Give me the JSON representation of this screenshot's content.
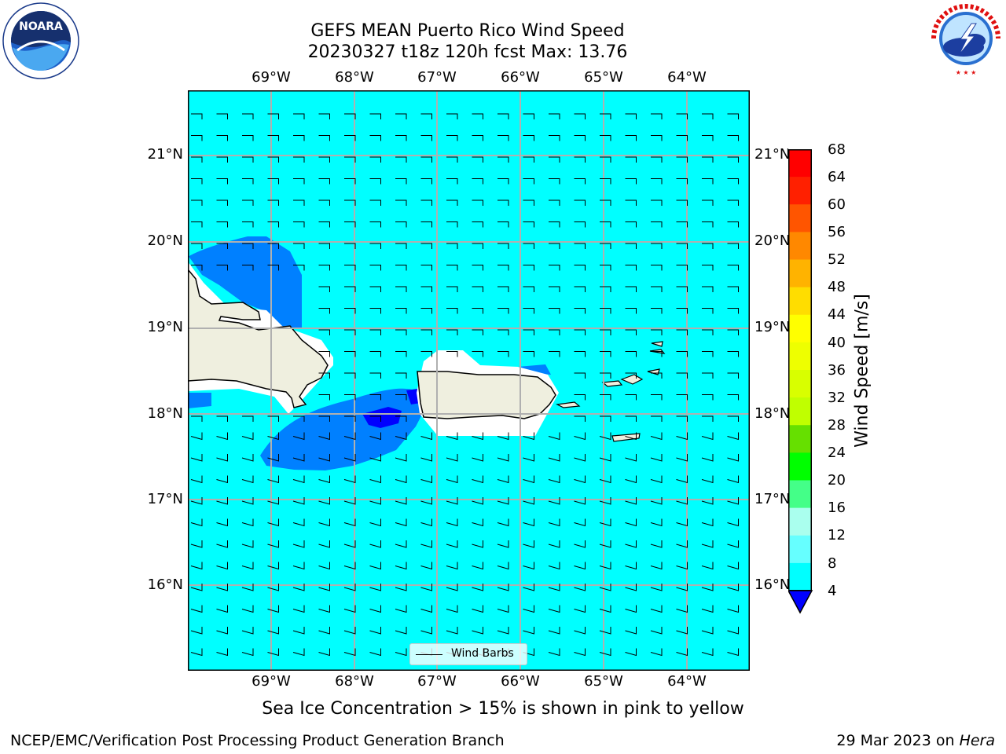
{
  "header": {
    "title_line1": "GEFS MEAN Puerto Rico Wind Speed",
    "title_line2": "20230327 t18z 120h fcst   Max: 13.76"
  },
  "logos": {
    "left": {
      "name": "NOARA",
      "ring_text": "NATIONAL OCEANIC AND ATMOSPHERIC ADMINISTRATION · U.S. DEPARTMENT OF COMMERCE"
    },
    "right": {
      "name": "NATIONAL WEATHER SERVICE"
    }
  },
  "map": {
    "lon_labels": [
      "69°W",
      "68°W",
      "67°W",
      "66°W",
      "65°W",
      "64°W"
    ],
    "lat_labels": [
      "21°N",
      "20°N",
      "19°N",
      "18°N",
      "17°N",
      "16°N"
    ],
    "legend_label": "Wind Barbs",
    "background_color": "#00ffff",
    "land_color": "#efefdf"
  },
  "colorbar": {
    "label": "Wind Speed [m/s]",
    "ticks": [
      "68",
      "64",
      "60",
      "56",
      "52",
      "48",
      "44",
      "40",
      "36",
      "32",
      "28",
      "24",
      "20",
      "16",
      "12",
      "8",
      "4"
    ],
    "colors_top_to_bottom": [
      "#ff0000",
      "#ff2200",
      "#ff5500",
      "#ff8800",
      "#ffaa00",
      "#ffcc00",
      "#ffee00",
      "#eeff00",
      "#ddff00",
      "#ccff00",
      "#aaff00",
      "#55dd00",
      "#00ff00",
      "#00ee00",
      "#44ff88",
      "#66ffcc",
      "#99ffee",
      "#66ffff",
      "#00ffff",
      "#00eeff",
      "#007fff",
      "#0000ff"
    ]
  },
  "notes": {
    "sea_ice": "Sea Ice Concentration > 15% is shown in pink to yellow"
  },
  "footer": {
    "left": "NCEP/EMC/Verification Post Processing Product Generation Branch",
    "date": "29 Mar 2023 on ",
    "machine": "Hera"
  }
}
